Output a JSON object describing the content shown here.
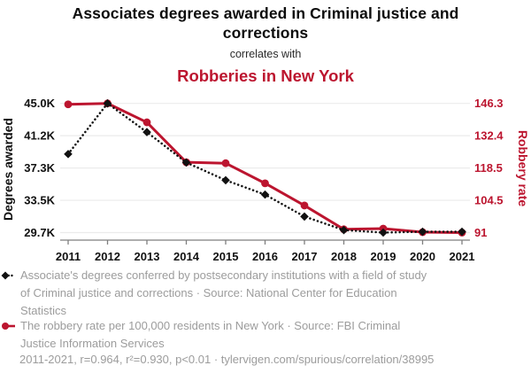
{
  "header": {
    "title": "Associates degrees awarded in Criminal justice and corrections",
    "connector": "correlates with",
    "subtitle": "Robberies in New York"
  },
  "colors": {
    "red": "#bc152f",
    "black_series": "#111111",
    "grid": "#ebebeb",
    "axis": "#7f7f7f",
    "tick_label": "#111111",
    "muted_text": "#9c9c9c"
  },
  "chart_data": {
    "type": "line",
    "x": [
      2011,
      2012,
      2013,
      2014,
      2015,
      2016,
      2017,
      2018,
      2019,
      2020,
      2021
    ],
    "x_ticks": [
      "2011",
      "2012",
      "2013",
      "2014",
      "2015",
      "2016",
      "2017",
      "2018",
      "2019",
      "2020",
      "2021"
    ],
    "series": [
      {
        "name": "Associates degrees awarded in Criminal justice and corrections",
        "axis": "left",
        "style": "dotted-diamond",
        "values": [
          39000,
          45000,
          41600,
          38000,
          35900,
          34200,
          31600,
          30000,
          29700,
          29800,
          29800
        ]
      },
      {
        "name": "Robberies in New York (robbery rate)",
        "axis": "right",
        "style": "solid-circle",
        "values": [
          145.9,
          146.3,
          138.2,
          121.1,
          120.7,
          112.1,
          102.6,
          92.4,
          92.7,
          91.2,
          91.0
        ]
      }
    ],
    "left_axis": {
      "label": "Degrees awarded",
      "tick_labels": [
        "45.0K",
        "41.2K",
        "37.3K",
        "33.5K",
        "29.7K"
      ],
      "range": [
        29700,
        45000
      ]
    },
    "right_axis": {
      "label": "Robbery rate",
      "tick_labels": [
        "146.3",
        "132.4",
        "118.5",
        "104.5",
        "91"
      ],
      "range": [
        91,
        146.3
      ]
    },
    "grid": true,
    "legend_position": "bottom"
  },
  "legend": {
    "degrees_label": "Associate's degrees conferred by postsecondary institutions with a field of study of Criminal justice and corrections · Source: National Center for Education Statistics",
    "robbery_label": "The robbery rate per 100,000 residents in New York · Source: FBI Criminal Justice Information Services"
  },
  "footer": {
    "stats": "2011-2021, r=0.964, r²=0.930, p<0.01 · tylervigen.com/spurious/correlation/38995"
  }
}
